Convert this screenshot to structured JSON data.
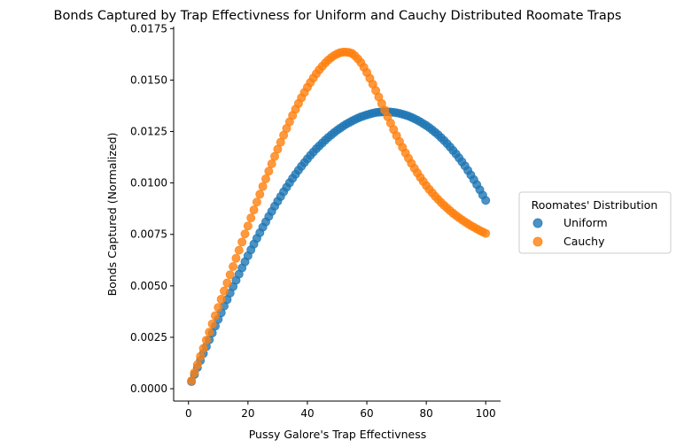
{
  "chart_data": {
    "type": "scatter",
    "title": "Bonds Captured by Trap Effectivness for Uniform and Cauchy Distributed Roomate Traps",
    "xlabel": "Pussy Galore's Trap Effectivness",
    "ylabel": "Bonds Captured (Normalized)",
    "xlim": [
      -5,
      105
    ],
    "ylim": [
      -0.0006,
      0.0176
    ],
    "xticks": [
      0,
      20,
      40,
      60,
      80,
      100
    ],
    "xtick_labels": [
      "0",
      "20",
      "40",
      "60",
      "80",
      "100"
    ],
    "yticks": [
      0,
      0.0025,
      0.005,
      0.0075,
      0.01,
      0.0125,
      0.015,
      0.0175
    ],
    "ytick_labels": [
      "0.0000",
      "0.0025",
      "0.0050",
      "0.0075",
      "0.0100",
      "0.0125",
      "0.0150",
      "0.0175"
    ],
    "grid": false,
    "legend": {
      "title": "Roomates' Distribution",
      "placement": "right"
    },
    "x": [
      1,
      2,
      3,
      4,
      5,
      6,
      7,
      8,
      9,
      10,
      11,
      12,
      13,
      14,
      15,
      16,
      17,
      18,
      19,
      20,
      21,
      22,
      23,
      24,
      25,
      26,
      27,
      28,
      29,
      30,
      31,
      32,
      33,
      34,
      35,
      36,
      37,
      38,
      39,
      40,
      41,
      42,
      43,
      44,
      45,
      46,
      47,
      48,
      49,
      50,
      51,
      52,
      53,
      54,
      55,
      56,
      57,
      58,
      59,
      60,
      61,
      62,
      63,
      64,
      65,
      66,
      67,
      68,
      69,
      70,
      71,
      72,
      73,
      74,
      75,
      76,
      77,
      78,
      79,
      80,
      81,
      82,
      83,
      84,
      85,
      86,
      87,
      88,
      89,
      90,
      91,
      92,
      93,
      94,
      95,
      96,
      97,
      98,
      99,
      100
    ],
    "series": [
      {
        "name": "Uniform",
        "color": "#1f77b4",
        "values": [
          0.00035,
          0.00069,
          0.00103,
          0.00137,
          0.00171,
          0.00205,
          0.00238,
          0.00271,
          0.00304,
          0.00337,
          0.00369,
          0.00402,
          0.00433,
          0.00465,
          0.00496,
          0.00527,
          0.00557,
          0.00587,
          0.00617,
          0.00646,
          0.00675,
          0.00703,
          0.00731,
          0.00758,
          0.00785,
          0.00811,
          0.00837,
          0.00862,
          0.00887,
          0.00911,
          0.00934,
          0.00957,
          0.00979,
          0.01001,
          0.01022,
          0.01042,
          0.01062,
          0.01081,
          0.01099,
          0.01117,
          0.01134,
          0.0115,
          0.01166,
          0.0118,
          0.01194,
          0.01208,
          0.01221,
          0.01233,
          0.01245,
          0.01256,
          0.01266,
          0.01276,
          0.01285,
          0.01293,
          0.01301,
          0.01308,
          0.01315,
          0.01321,
          0.01326,
          0.01331,
          0.01335,
          0.01339,
          0.01342,
          0.01344,
          0.01345,
          0.01346,
          0.01346,
          0.01345,
          0.01343,
          0.01341,
          0.01338,
          0.01334,
          0.0133,
          0.01325,
          0.01319,
          0.01312,
          0.01305,
          0.01297,
          0.01288,
          0.01279,
          0.01269,
          0.01258,
          0.01246,
          0.01234,
          0.0122,
          0.01206,
          0.01191,
          0.01175,
          0.01158,
          0.01141,
          0.01122,
          0.01103,
          0.01083,
          0.01061,
          0.01039,
          0.01016,
          0.00992,
          0.00967,
          0.00941,
          0.00915
        ]
      },
      {
        "name": "Cauchy",
        "color": "#ff7f0e",
        "values": [
          0.00039,
          0.00078,
          0.00117,
          0.00157,
          0.00196,
          0.00236,
          0.00275,
          0.00315,
          0.00355,
          0.00395,
          0.00435,
          0.00475,
          0.00514,
          0.00554,
          0.00594,
          0.00634,
          0.00673,
          0.00713,
          0.00752,
          0.00791,
          0.0083,
          0.00869,
          0.00907,
          0.00945,
          0.00983,
          0.0102,
          0.01057,
          0.01093,
          0.01129,
          0.01164,
          0.01198,
          0.01232,
          0.01265,
          0.01297,
          0.01328,
          0.01358,
          0.01386,
          0.01414,
          0.0144,
          0.01465,
          0.01488,
          0.0151,
          0.01531,
          0.0155,
          0.01567,
          0.01583,
          0.01597,
          0.01609,
          0.01619,
          0.01627,
          0.01633,
          0.01636,
          0.01636,
          0.01634,
          0.0163,
          0.01618,
          0.01603,
          0.01585,
          0.01562,
          0.01537,
          0.01509,
          0.0148,
          0.01449,
          0.01418,
          0.01386,
          0.01354,
          0.01322,
          0.01291,
          0.0126,
          0.0123,
          0.01201,
          0.01173,
          0.01146,
          0.0112,
          0.01095,
          0.01071,
          0.01049,
          0.01027,
          0.01007,
          0.00987,
          0.00969,
          0.00952,
          0.00935,
          0.0092,
          0.00905,
          0.00891,
          0.00878,
          0.00865,
          0.00853,
          0.00842,
          0.00831,
          0.00821,
          0.00811,
          0.00802,
          0.00793,
          0.00785,
          0.00777,
          0.00769,
          0.00762,
          0.00755
        ]
      }
    ]
  }
}
